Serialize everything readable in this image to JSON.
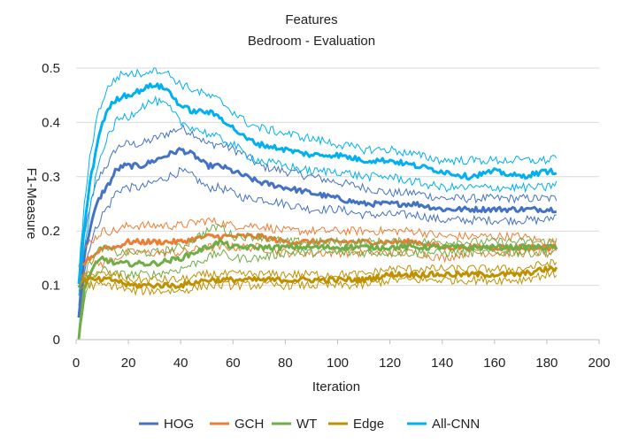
{
  "chart_data": {
    "type": "line",
    "title": "Features",
    "subtitle": "Bedroom - Evaluation",
    "xlabel": "Iteration",
    "ylabel": "F1-Measure",
    "xlim": [
      0,
      200
    ],
    "ylim": [
      0,
      0.5
    ],
    "xticks": [
      "0",
      "20",
      "40",
      "60",
      "80",
      "100",
      "120",
      "140",
      "160",
      "180",
      "200"
    ],
    "yticks": [
      "0",
      "0.1",
      "0.2",
      "0.3",
      "0.4",
      "0.5"
    ],
    "grid": "horizontal",
    "legend_position": "bottom",
    "series": [
      {
        "name": "HOG",
        "color": "#4472C4",
        "x": [
          1,
          3,
          5,
          8,
          10,
          13,
          15,
          18,
          20,
          25,
          30,
          35,
          40,
          45,
          50,
          55,
          60,
          65,
          70,
          80,
          90,
          100,
          110,
          120,
          130,
          140,
          150,
          160,
          170,
          180,
          184
        ],
        "mean": [
          0.04,
          0.15,
          0.2,
          0.25,
          0.27,
          0.29,
          0.31,
          0.32,
          0.32,
          0.32,
          0.33,
          0.34,
          0.35,
          0.34,
          0.32,
          0.32,
          0.31,
          0.3,
          0.29,
          0.28,
          0.27,
          0.26,
          0.25,
          0.25,
          0.25,
          0.24,
          0.24,
          0.24,
          0.24,
          0.24,
          0.24
        ],
        "upper": [
          0.06,
          0.18,
          0.24,
          0.29,
          0.31,
          0.33,
          0.35,
          0.36,
          0.36,
          0.36,
          0.37,
          0.38,
          0.39,
          0.38,
          0.36,
          0.36,
          0.35,
          0.34,
          0.32,
          0.31,
          0.3,
          0.29,
          0.28,
          0.27,
          0.27,
          0.26,
          0.26,
          0.26,
          0.26,
          0.26,
          0.26
        ],
        "lower": [
          0.02,
          0.12,
          0.17,
          0.21,
          0.23,
          0.25,
          0.27,
          0.28,
          0.28,
          0.28,
          0.29,
          0.3,
          0.31,
          0.3,
          0.28,
          0.28,
          0.27,
          0.26,
          0.26,
          0.25,
          0.24,
          0.24,
          0.23,
          0.23,
          0.23,
          0.22,
          0.22,
          0.22,
          0.22,
          0.22,
          0.23
        ]
      },
      {
        "name": "GCH",
        "color": "#ED7D31",
        "x": [
          1,
          3,
          5,
          8,
          10,
          15,
          20,
          30,
          40,
          50,
          60,
          70,
          80,
          90,
          100,
          110,
          120,
          130,
          140,
          150,
          160,
          170,
          180,
          184
        ],
        "mean": [
          0.13,
          0.14,
          0.15,
          0.16,
          0.17,
          0.17,
          0.18,
          0.18,
          0.18,
          0.19,
          0.19,
          0.19,
          0.18,
          0.18,
          0.18,
          0.18,
          0.18,
          0.18,
          0.17,
          0.17,
          0.17,
          0.17,
          0.17,
          0.17
        ],
        "upper": [
          0.14,
          0.16,
          0.18,
          0.19,
          0.2,
          0.2,
          0.21,
          0.21,
          0.21,
          0.22,
          0.21,
          0.21,
          0.2,
          0.2,
          0.2,
          0.2,
          0.2,
          0.2,
          0.19,
          0.19,
          0.19,
          0.19,
          0.18,
          0.18
        ],
        "lower": [
          0.12,
          0.12,
          0.13,
          0.14,
          0.14,
          0.15,
          0.16,
          0.16,
          0.16,
          0.17,
          0.17,
          0.17,
          0.16,
          0.16,
          0.16,
          0.16,
          0.16,
          0.16,
          0.15,
          0.16,
          0.16,
          0.16,
          0.16,
          0.16
        ]
      },
      {
        "name": "WT",
        "color": "#70AD47",
        "x": [
          1,
          3,
          5,
          8,
          10,
          15,
          20,
          30,
          40,
          50,
          55,
          60,
          70,
          80,
          90,
          100,
          110,
          120,
          130,
          140,
          150,
          160,
          170,
          180,
          184
        ],
        "mean": [
          0.0,
          0.09,
          0.12,
          0.14,
          0.15,
          0.14,
          0.14,
          0.14,
          0.15,
          0.17,
          0.18,
          0.17,
          0.17,
          0.17,
          0.17,
          0.17,
          0.17,
          0.17,
          0.17,
          0.17,
          0.17,
          0.17,
          0.17,
          0.17,
          0.17
        ],
        "upper": [
          0.02,
          0.11,
          0.14,
          0.16,
          0.17,
          0.16,
          0.16,
          0.16,
          0.17,
          0.2,
          0.21,
          0.19,
          0.19,
          0.18,
          0.18,
          0.18,
          0.18,
          0.18,
          0.18,
          0.18,
          0.18,
          0.18,
          0.18,
          0.18,
          0.18
        ],
        "lower": [
          0.0,
          0.07,
          0.1,
          0.12,
          0.13,
          0.12,
          0.12,
          0.12,
          0.13,
          0.15,
          0.16,
          0.15,
          0.15,
          0.16,
          0.16,
          0.16,
          0.16,
          0.16,
          0.16,
          0.16,
          0.16,
          0.16,
          0.16,
          0.16,
          0.16
        ]
      },
      {
        "name": "Edge",
        "color": "#BF9000",
        "x": [
          1,
          3,
          5,
          8,
          10,
          15,
          20,
          30,
          40,
          50,
          60,
          70,
          80,
          90,
          100,
          110,
          120,
          130,
          140,
          150,
          160,
          170,
          180,
          184
        ],
        "mean": [
          0.1,
          0.11,
          0.11,
          0.11,
          0.11,
          0.11,
          0.1,
          0.1,
          0.1,
          0.11,
          0.11,
          0.11,
          0.11,
          0.11,
          0.11,
          0.11,
          0.12,
          0.12,
          0.12,
          0.12,
          0.12,
          0.12,
          0.13,
          0.13
        ],
        "upper": [
          0.11,
          0.12,
          0.12,
          0.12,
          0.12,
          0.12,
          0.11,
          0.11,
          0.11,
          0.12,
          0.12,
          0.12,
          0.12,
          0.12,
          0.12,
          0.12,
          0.13,
          0.13,
          0.13,
          0.13,
          0.13,
          0.13,
          0.14,
          0.14
        ],
        "lower": [
          0.09,
          0.1,
          0.1,
          0.1,
          0.1,
          0.1,
          0.09,
          0.09,
          0.09,
          0.1,
          0.1,
          0.1,
          0.1,
          0.1,
          0.1,
          0.1,
          0.11,
          0.11,
          0.11,
          0.11,
          0.11,
          0.11,
          0.12,
          0.12
        ]
      },
      {
        "name": "All-CNN",
        "color": "#00B0F0",
        "x": [
          1,
          3,
          5,
          8,
          10,
          13,
          15,
          18,
          20,
          25,
          30,
          35,
          40,
          45,
          50,
          55,
          60,
          65,
          70,
          80,
          90,
          100,
          110,
          120,
          130,
          140,
          150,
          160,
          170,
          180,
          184
        ],
        "mean": [
          0.1,
          0.2,
          0.28,
          0.36,
          0.4,
          0.43,
          0.44,
          0.45,
          0.45,
          0.46,
          0.47,
          0.46,
          0.43,
          0.42,
          0.42,
          0.41,
          0.39,
          0.37,
          0.36,
          0.35,
          0.34,
          0.34,
          0.33,
          0.33,
          0.32,
          0.31,
          0.3,
          0.31,
          0.3,
          0.31,
          0.31
        ],
        "upper": [
          0.12,
          0.24,
          0.33,
          0.41,
          0.44,
          0.47,
          0.48,
          0.49,
          0.49,
          0.49,
          0.5,
          0.49,
          0.47,
          0.46,
          0.45,
          0.44,
          0.42,
          0.4,
          0.39,
          0.38,
          0.37,
          0.36,
          0.35,
          0.35,
          0.34,
          0.33,
          0.33,
          0.33,
          0.33,
          0.33,
          0.34
        ],
        "lower": [
          0.08,
          0.16,
          0.23,
          0.31,
          0.35,
          0.38,
          0.4,
          0.41,
          0.41,
          0.43,
          0.44,
          0.43,
          0.4,
          0.39,
          0.38,
          0.37,
          0.36,
          0.34,
          0.33,
          0.32,
          0.31,
          0.31,
          0.3,
          0.3,
          0.29,
          0.28,
          0.28,
          0.28,
          0.28,
          0.28,
          0.29
        ]
      }
    ]
  }
}
